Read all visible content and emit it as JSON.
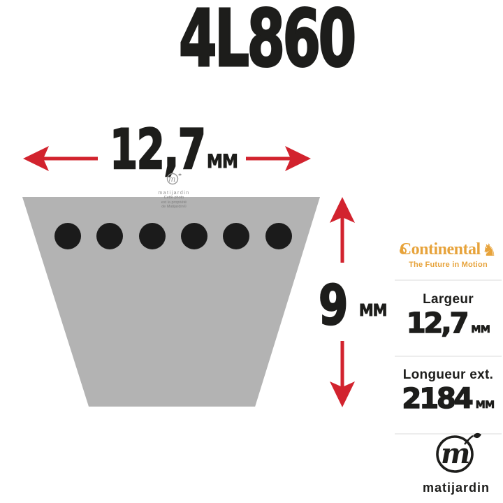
{
  "product": {
    "code": "4L860"
  },
  "dimensions": {
    "width": {
      "value": "12,7",
      "unit": "MM"
    },
    "height": {
      "value": "9",
      "unit": "MM"
    }
  },
  "belt": {
    "cord_count": 6
  },
  "brand": {
    "name": "Continental",
    "tagline": "The Future in Motion"
  },
  "specs": {
    "width": {
      "label": "Largeur",
      "value": "12,7",
      "unit": "MM"
    },
    "length": {
      "label": "Longueur ext.",
      "value": "2184",
      "unit": "MM"
    }
  },
  "watermark": {
    "brand": "matijardin",
    "line1": "Cette photo",
    "line2": "est la propriété",
    "line3": "de Matijardin©"
  },
  "footer": {
    "brand": "matijardin"
  },
  "colors": {
    "arrow_red": "#d2232e",
    "belt_gray": "#b3b3b3",
    "brand_gold": "#e7a33b",
    "text_black": "#1d1d1b"
  }
}
